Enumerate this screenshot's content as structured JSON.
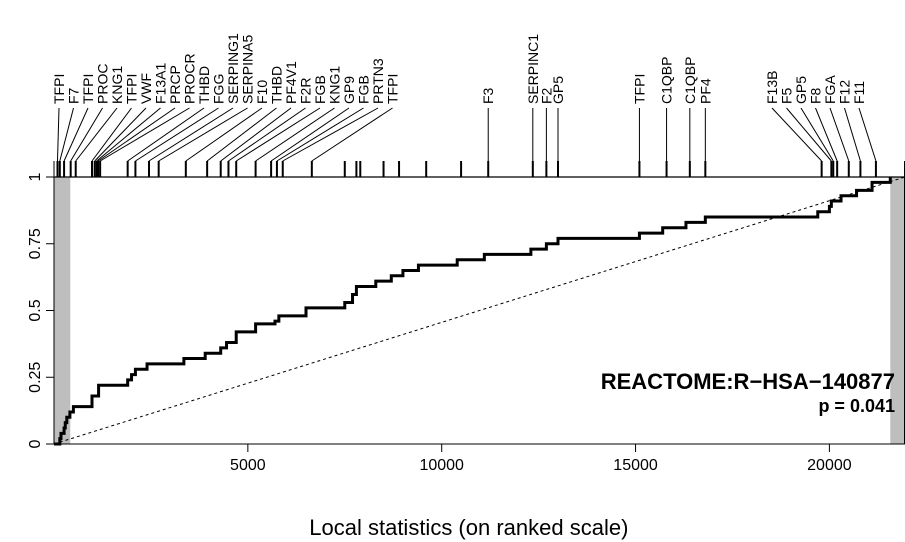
{
  "chart_data": {
    "type": "line",
    "title": "",
    "xlabel": "Local statistics (on ranked scale)",
    "ylabel": "",
    "xlim": [
      0,
      21950
    ],
    "ylim": [
      0,
      1
    ],
    "x_ticks": [
      5000,
      10000,
      15000,
      20000
    ],
    "y_ticks": [
      0,
      0.25,
      0.5,
      0.75,
      1
    ],
    "y_tick_labels": [
      "0",
      "0.25",
      "0.5",
      "0.75",
      "1"
    ],
    "grid": false,
    "annotation": {
      "title": "REACTOME:R−HSA−140877",
      "p_value": "p = 0.041"
    },
    "shaded_regions": [
      [
        0,
        420
      ],
      [
        21570,
        21950
      ]
    ],
    "reference_line": {
      "x": [
        0,
        21950
      ],
      "y": [
        0,
        1
      ],
      "style": "dashed"
    },
    "series": [
      {
        "x": [
          0,
          150,
          180,
          260,
          290,
          330,
          410,
          500,
          560,
          980,
          1150,
          1900,
          2000,
          2100,
          2400,
          3350,
          3900,
          4300,
          4450,
          4700,
          5200,
          5700,
          5800,
          6500,
          7500,
          7700,
          7800,
          8300,
          8700,
          9000,
          9400,
          10400,
          11100,
          12300,
          12700,
          13000,
          15100,
          15700,
          16300,
          16800,
          19700,
          20000,
          20050,
          20300,
          20700,
          21100,
          21570
        ],
        "y": [
          0,
          0.02,
          0.04,
          0.06,
          0.08,
          0.1,
          0.12,
          0.14,
          0.14,
          0.18,
          0.22,
          0.24,
          0.26,
          0.28,
          0.3,
          0.32,
          0.34,
          0.36,
          0.38,
          0.42,
          0.45,
          0.46,
          0.48,
          0.51,
          0.53,
          0.56,
          0.59,
          0.61,
          0.63,
          0.65,
          0.67,
          0.69,
          0.71,
          0.73,
          0.75,
          0.77,
          0.79,
          0.81,
          0.83,
          0.85,
          0.87,
          0.89,
          0.91,
          0.93,
          0.95,
          0.98,
          1.0
        ]
      }
    ],
    "barcode": [
      {
        "x": 90,
        "label": "TFPI"
      },
      {
        "x": 150,
        "label": "F7"
      },
      {
        "x": 260,
        "label": "TFPI"
      },
      {
        "x": 430,
        "label": "PROC"
      },
      {
        "x": 560,
        "label": "KNG1"
      },
      {
        "x": 980,
        "label": "TFPI"
      },
      {
        "x": 1050,
        "label": "VWF"
      },
      {
        "x": 1100,
        "label": "F13A1"
      },
      {
        "x": 1140,
        "label": "PRCP"
      },
      {
        "x": 1190,
        "label": "PROCR"
      },
      {
        "x": 1900,
        "label": "THBD"
      },
      {
        "x": 2100,
        "label": "FGG"
      },
      {
        "x": 2450,
        "label": "SERPING1"
      },
      {
        "x": 2700,
        "label": "SERPINA5"
      },
      {
        "x": 3400,
        "label": "F10"
      },
      {
        "x": 3950,
        "label": "THBD"
      },
      {
        "x": 4300,
        "label": "PF4V1"
      },
      {
        "x": 4500,
        "label": "F2R"
      },
      {
        "x": 4700,
        "label": "FGB"
      },
      {
        "x": 5200,
        "label": "KNG1"
      },
      {
        "x": 5600,
        "label": "GP9"
      },
      {
        "x": 5750,
        "label": "FGB"
      },
      {
        "x": 5900,
        "label": "PRTN3"
      },
      {
        "x": 6650,
        "label": "TFPI"
      },
      {
        "x": 7500,
        "label": null
      },
      {
        "x": 7800,
        "label": null
      },
      {
        "x": 7900,
        "label": null
      },
      {
        "x": 8500,
        "label": null
      },
      {
        "x": 8900,
        "label": null
      },
      {
        "x": 9600,
        "label": null
      },
      {
        "x": 10500,
        "label": null
      },
      {
        "x": 11200,
        "label": "F3"
      },
      {
        "x": 12350,
        "label": "SERPINC1"
      },
      {
        "x": 12700,
        "label": "F2"
      },
      {
        "x": 13000,
        "label": "GP5"
      },
      {
        "x": 15100,
        "label": "TFPI"
      },
      {
        "x": 15800,
        "label": "C1QBP"
      },
      {
        "x": 16400,
        "label": "C1QBP"
      },
      {
        "x": 16800,
        "label": "PF4"
      },
      {
        "x": 19800,
        "label": "F13B"
      },
      {
        "x": 20050,
        "label": "F5"
      },
      {
        "x": 20100,
        "label": "GP5"
      },
      {
        "x": 20200,
        "label": "F8"
      },
      {
        "x": 20500,
        "label": "FGA"
      },
      {
        "x": 20800,
        "label": "F12"
      },
      {
        "x": 21200,
        "label": "F11"
      }
    ]
  }
}
